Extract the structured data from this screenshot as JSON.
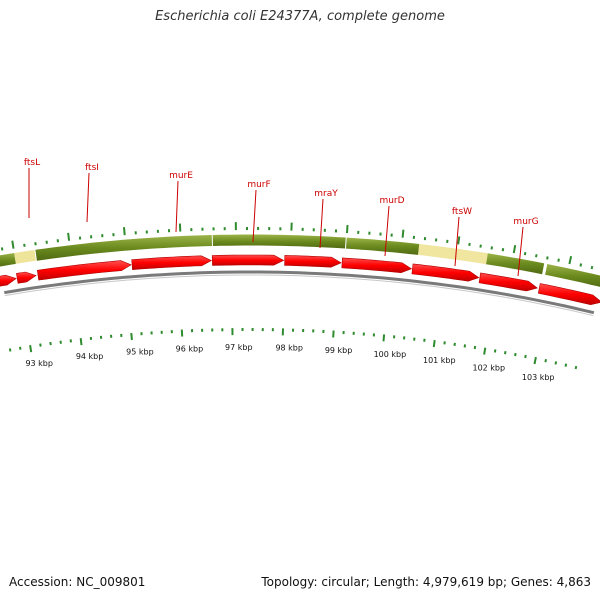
{
  "title": "Escherichia coli E24377A, complete genome",
  "footer": {
    "accession": "Accession: NC_009801",
    "summary": "Topology: circular; Length: 4,979,619 bp; Genes: 4,863"
  },
  "genes": [
    "ftsL",
    "ftsI",
    "murE",
    "murF",
    "mraY",
    "murD",
    "ftsW",
    "murG"
  ],
  "kbp_ticks": [
    "93 kbp",
    "94 kbp",
    "95 kbp",
    "96 kbp",
    "97 kbp",
    "98 kbp",
    "99 kbp",
    "100 kbp",
    "101 kbp",
    "102 kbp",
    "103 kbp"
  ],
  "colors": {
    "gene_label": "#cc0000",
    "cds_arrow": "#ff0000",
    "cds_arrow_dark": "#b30000",
    "feature_bar": "#6b8a1e",
    "feature_bar_light": "#9cb44a",
    "feature_bar_gap": "#f0e6a0",
    "backbone": "#888888",
    "tick": "#2e8b2e"
  }
}
